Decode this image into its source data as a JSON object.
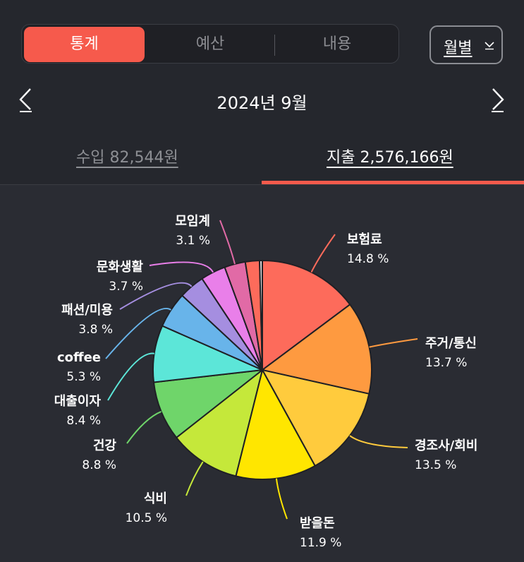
{
  "tabs": [
    {
      "label": "통계",
      "active": true
    },
    {
      "label": "예산",
      "active": false
    },
    {
      "label": "내용",
      "active": false
    }
  ],
  "period_button": {
    "label": "월별",
    "icon": "chevron-down-icon"
  },
  "month_nav": {
    "title": "2024년 9월",
    "prev_icon": "chevron-left-icon",
    "next_icon": "chevron-right-icon"
  },
  "summary_tabs": {
    "income": "수입 82,544원",
    "expense": "지출 2,576,166원",
    "selected": "expense"
  },
  "colors": {
    "accent": "#f65a4c",
    "background": "#2a2c33"
  },
  "chart_data": {
    "type": "pie",
    "unit": "%",
    "slices": [
      {
        "label": "보험료",
        "value": 14.8,
        "color": "#fd6b5b"
      },
      {
        "label": "주거/통신",
        "value": 13.7,
        "color": "#fe9a40"
      },
      {
        "label": "경조사/회비",
        "value": 13.5,
        "color": "#ffcb3d"
      },
      {
        "label": "받을돈",
        "value": 11.9,
        "color": "#ffe600"
      },
      {
        "label": "식비",
        "value": 10.5,
        "color": "#c5e83a"
      },
      {
        "label": "건강",
        "value": 8.8,
        "color": "#6fd56a"
      },
      {
        "label": "대출이자",
        "value": 8.4,
        "color": "#5ce6d8"
      },
      {
        "label": "coffee",
        "value": 5.3,
        "color": "#68b4ea"
      },
      {
        "label": "패션/미용",
        "value": 3.8,
        "color": "#a58ee0"
      },
      {
        "label": "문화생활",
        "value": 3.7,
        "color": "#e97fe9"
      },
      {
        "label": "모임계",
        "value": 3.1,
        "color": "#e16aa6"
      },
      {
        "value": 2.1,
        "color": "#fd6b5b"
      },
      {
        "value": 0.4,
        "color": "#e2e2e2"
      }
    ]
  }
}
